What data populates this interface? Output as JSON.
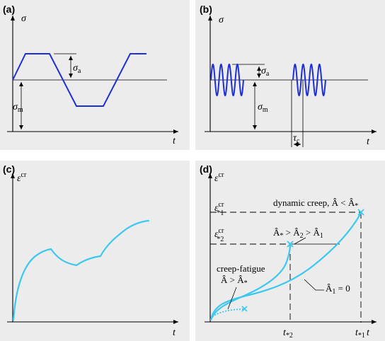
{
  "panel_a": {
    "label": "(a)",
    "y_axis": "σ",
    "x_axis": "t",
    "sigma_a": "σ",
    "sigma_a_sub": "a",
    "sigma_m": "σ",
    "sigma_m_sub": "m"
  },
  "panel_b": {
    "label": "(b)",
    "y_axis": "σ",
    "x_axis": "t",
    "sigma_a": "σ",
    "sigma_a_sub": "a",
    "sigma_m": "σ",
    "sigma_m_sub": "m",
    "tau": "τ",
    "tau_sub": "c"
  },
  "panel_c": {
    "label": "(c)",
    "y_axis": "ε",
    "y_axis_sup": "cr",
    "x_axis": "t"
  },
  "panel_d": {
    "label": "(d)",
    "y_axis": "ε",
    "y_axis_sup": "cr",
    "x_axis": "t",
    "eps1": "ε",
    "eps1_sup": "cr",
    "eps1_sub": "*1",
    "eps2": "ε",
    "eps2_sup": "cr",
    "eps2_sub": "*2",
    "t2": "t",
    "t2_sub": "*2",
    "t1": "t",
    "t1_sub": "*1",
    "dynamic_creep": "dynamic creep, Â < Â",
    "dynamic_creep_sub": "*",
    "middle_a": "Â",
    "middle_a_sub": "*",
    "middle_b": " > Â",
    "middle_b_sub": "2",
    "middle_c": " > Â",
    "middle_c_sub": "1",
    "creep_fatigue": "creep-fatigue",
    "cf_cond": "Â > Â",
    "cf_cond_sub": "*",
    "a1_text": "Â",
    "a1_sub": "1",
    "a1_eq": " = 0"
  },
  "colors": {
    "panel_background": "#ececec",
    "blue_curve": "#1e2fd6",
    "cyan_curve": "#3cc8ee"
  }
}
